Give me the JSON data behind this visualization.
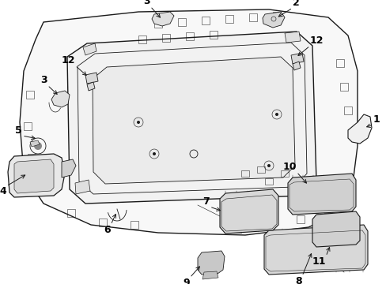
{
  "bg_color": "#ffffff",
  "line_color": "#1a1a1a",
  "label_color": "#000000",
  "fig_width": 4.89,
  "fig_height": 3.6,
  "dpi": 100,
  "lw_main": 1.0,
  "lw_thin": 0.6,
  "lw_label": 0.7
}
